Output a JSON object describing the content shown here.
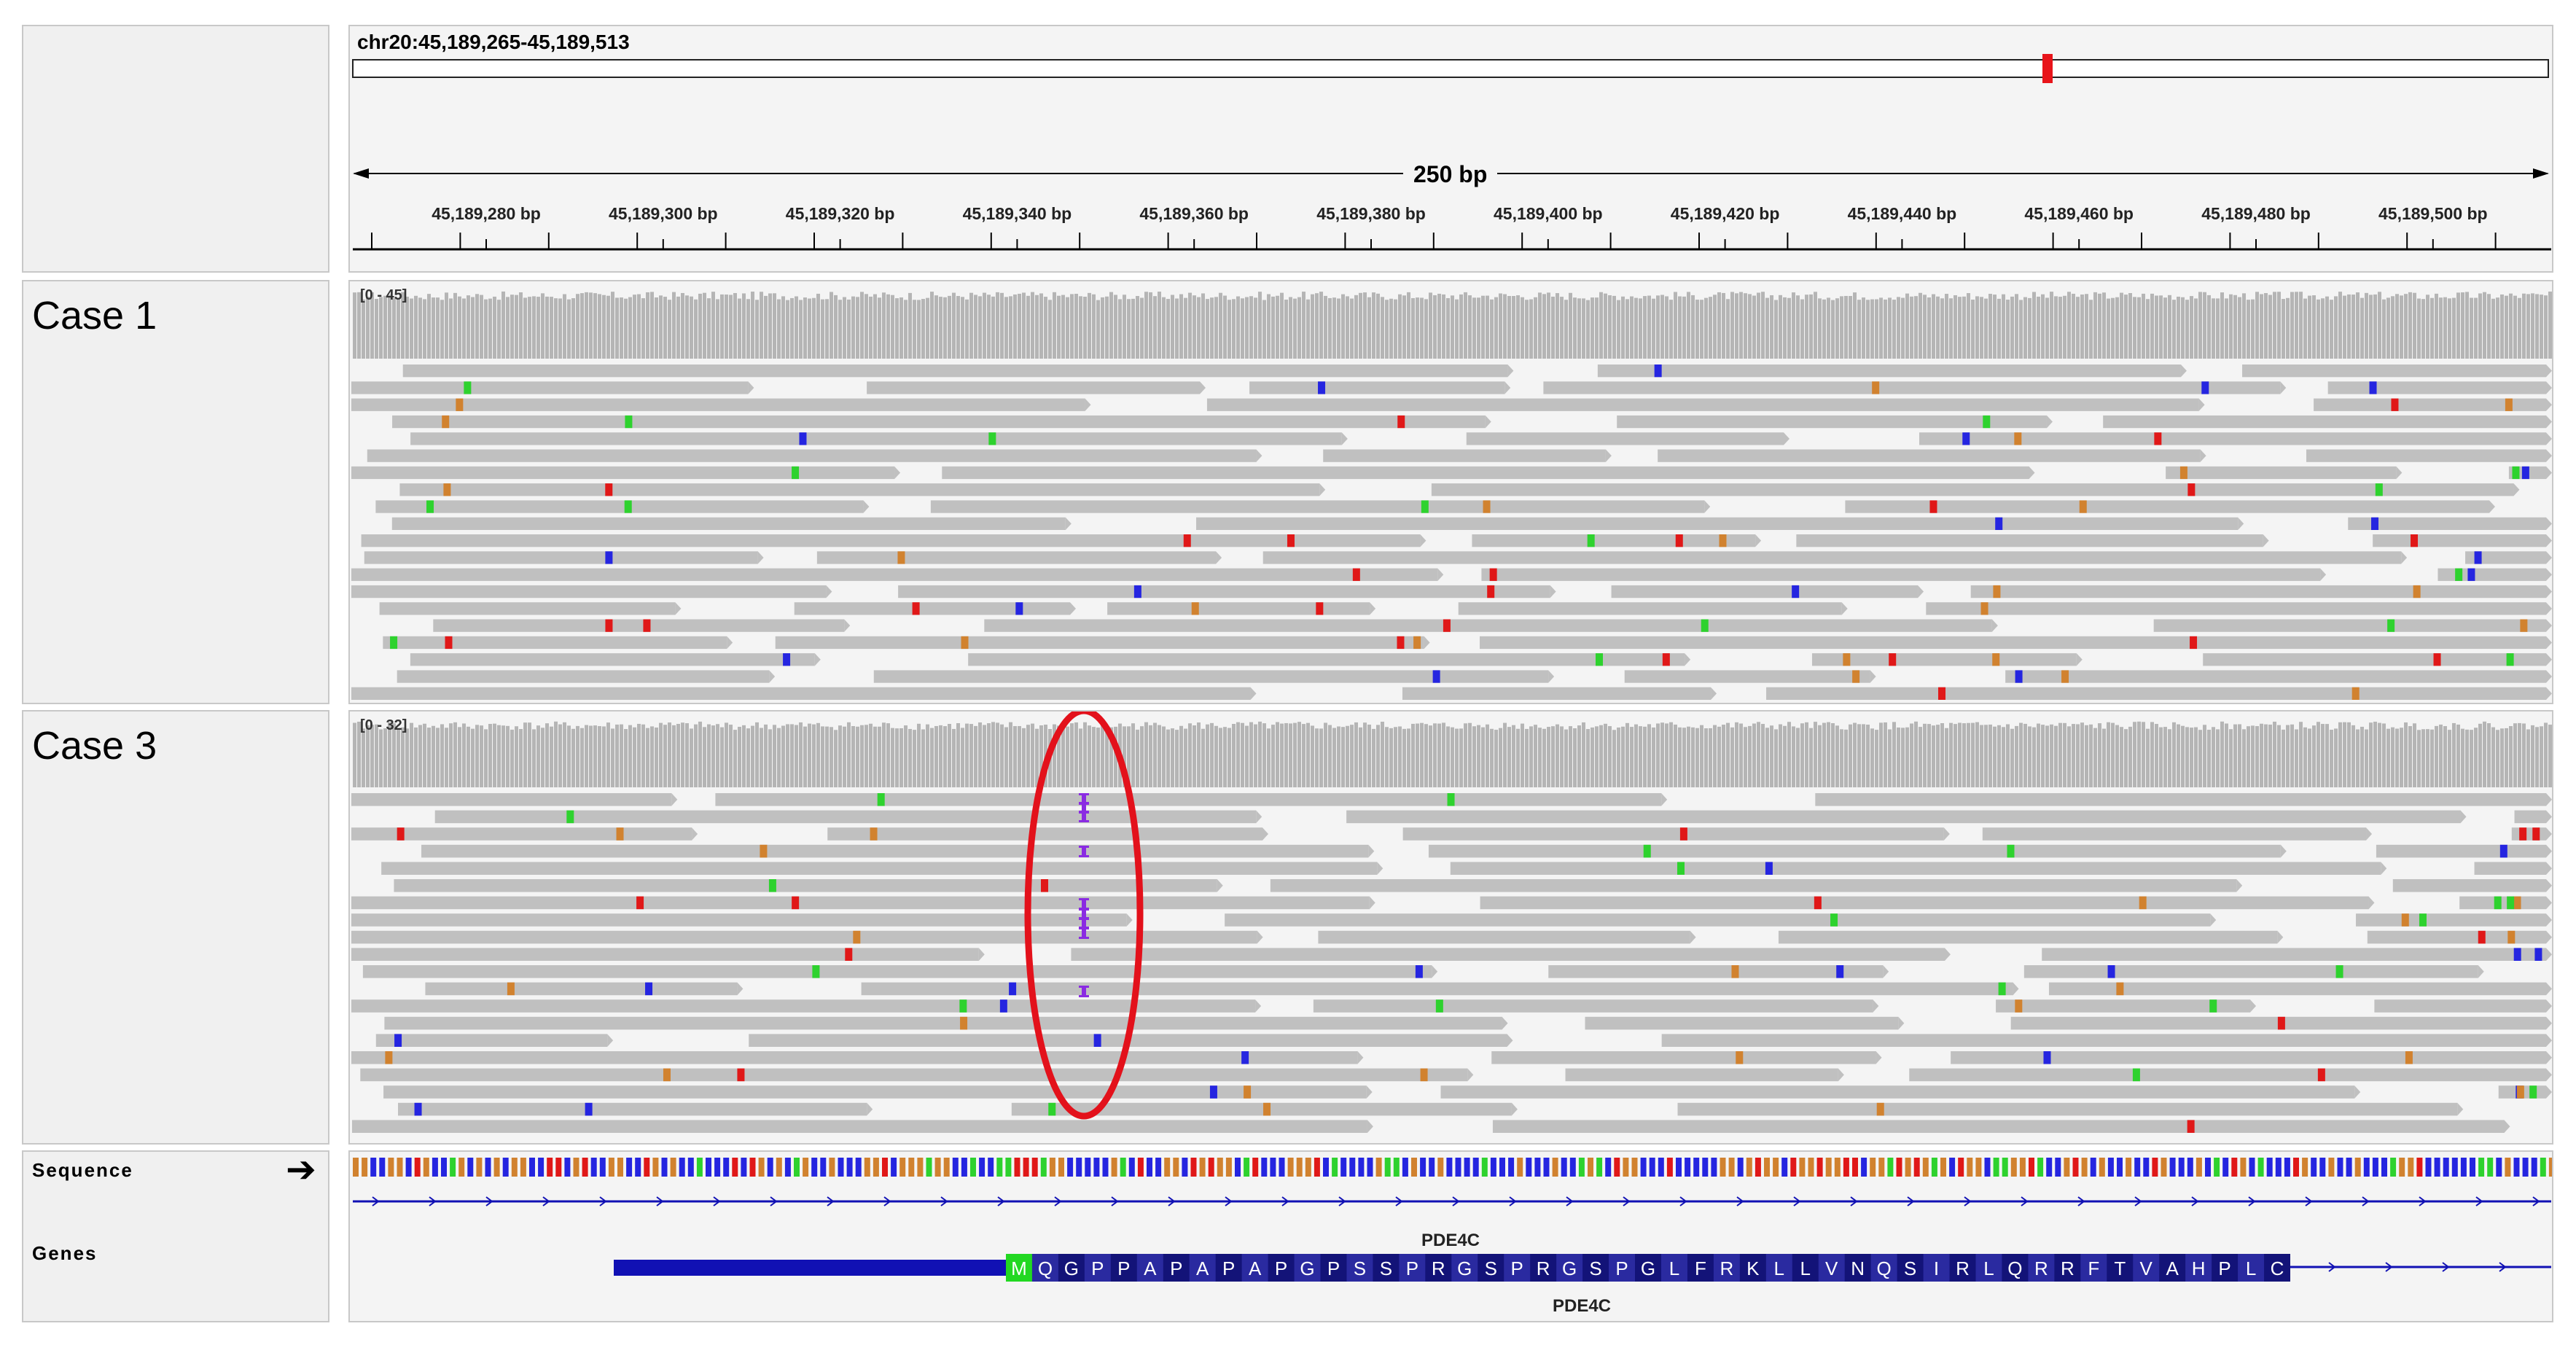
{
  "ruler": {
    "locus": "chr20:45,189,265-45,189,513",
    "span_label": "250 bp",
    "ticks": [
      "45,189,280 bp",
      "45,189,300 bp",
      "45,189,320 bp",
      "45,189,340 bp",
      "45,189,360 bp",
      "45,189,380 bp",
      "45,189,400 bp",
      "45,189,420 bp",
      "45,189,440 bp",
      "45,189,460 bp",
      "45,189,480 bp",
      "45,189,500 bp"
    ]
  },
  "tracks": {
    "case1": {
      "name": "Case 1",
      "range": "[0 - 45]"
    },
    "case3": {
      "name": "Case 3",
      "range": "[0 - 32]"
    }
  },
  "sequence": {
    "name": "Sequence",
    "strand_icon": "right-arrow-icon"
  },
  "genes": {
    "name": "Genes",
    "gene_name_top": "PDE4C",
    "gene_name_bottom": "PDE4C",
    "amino_acids": "MQGPPAPAPAPGPSSPRGSPRGSPGLFRKLLVNQSIRLQRRFTVAHPLC"
  },
  "colors": {
    "read": "#c0c0c0",
    "coverage": "#b5b5b5",
    "mismatch_A": "#2ed22e",
    "mismatch_C": "#2525e0",
    "mismatch_G": "#d1822f",
    "mismatch_T": "#e01818",
    "insertion": "#8a2be2",
    "highlight_ellipse": "#e3111b",
    "gene_utr": "#1111b4",
    "gene_exon": "#131378",
    "start_codon": "#22d822"
  }
}
